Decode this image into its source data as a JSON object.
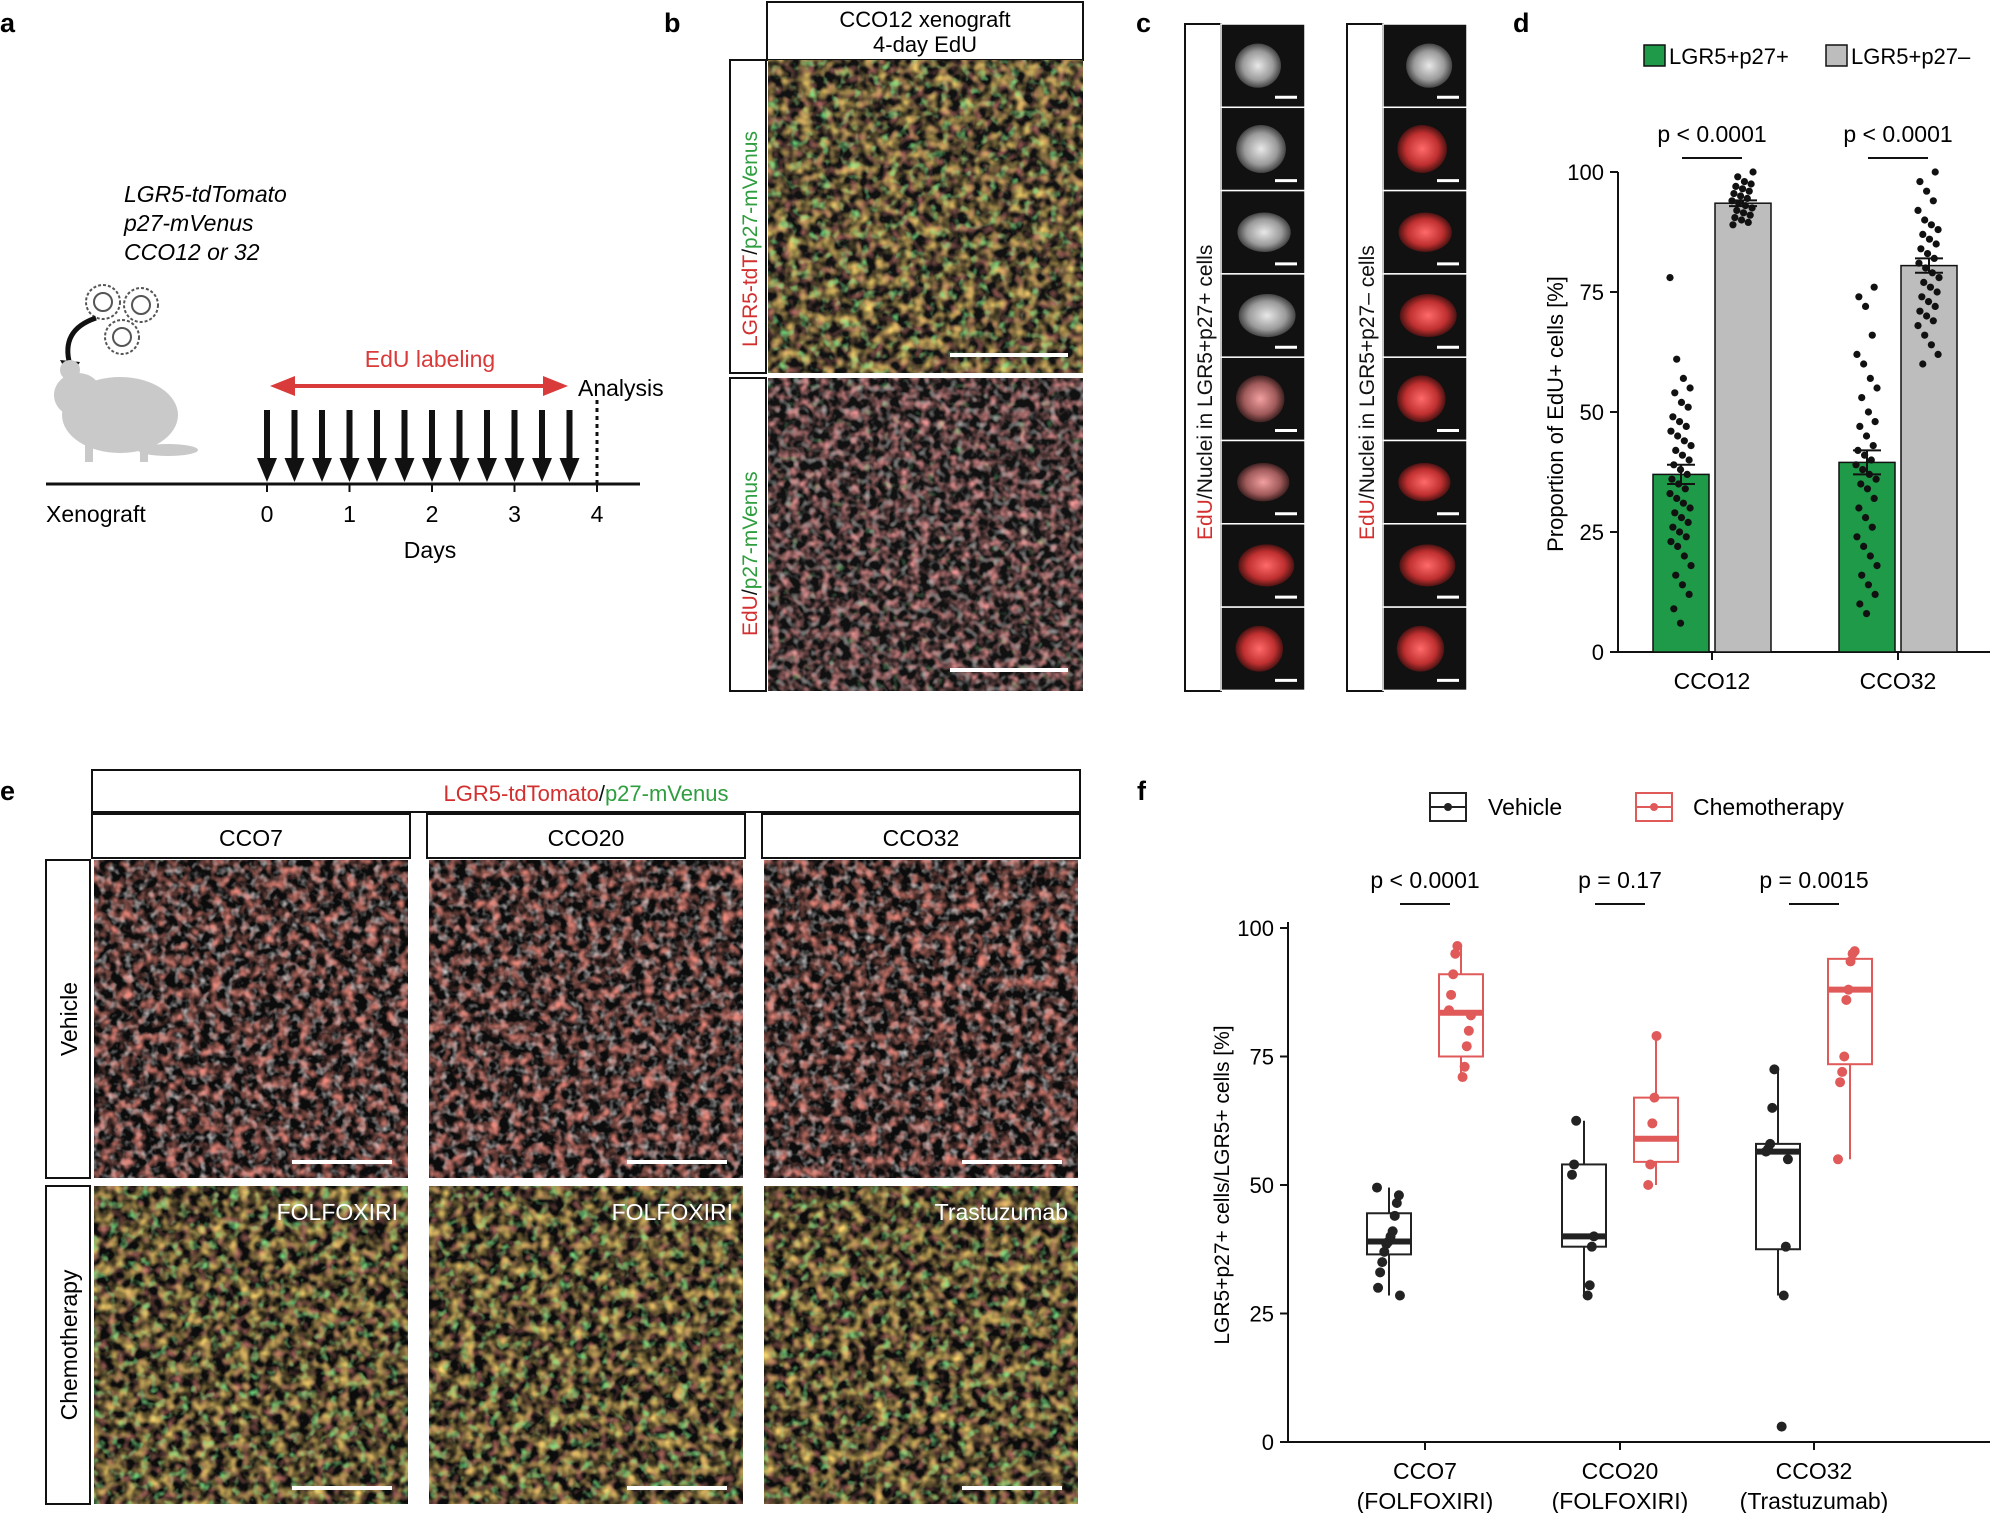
{
  "panels": {
    "a": {
      "letter": "a",
      "genotype": [
        "LGR5-tdTomato",
        "p27-mVenus",
        "CCO12 or 32"
      ],
      "edu_label": "EdU labeling",
      "analysis_label": "Analysis",
      "xenograft_label": "Xenograft",
      "days_label": "Days",
      "day_ticks": [
        "0",
        "1",
        "2",
        "3",
        "4"
      ],
      "arrow_count": 12
    },
    "b": {
      "letter": "b",
      "header_line1": "CCO12 xenograft",
      "header_line2": "4-day EdU",
      "row1_label": {
        "red": "LGR5-tdT",
        "sep": "/",
        "green": "p27-mVenus"
      },
      "row2_label": {
        "red": "EdU",
        "sep": "/",
        "green": "p27-mVenus"
      }
    },
    "c": {
      "letter": "c",
      "col1_label": {
        "red": "EdU",
        "rest": "/Nuclei in LGR5+p27+ cells"
      },
      "col2_label": {
        "red": "EdU",
        "rest": "/Nuclei in LGR5+p27– cells"
      },
      "tiles_per_column": 8
    },
    "d": {
      "letter": "d"
    },
    "e": {
      "letter": "e",
      "header": {
        "red": "LGR5-tdTomato",
        "sep": "/",
        "green": "p27-mVenus"
      },
      "columns": [
        "CCO7",
        "CCO20",
        "CCO32"
      ],
      "rows": [
        "Vehicle",
        "Chemotherapy"
      ],
      "treatments": [
        "FOLFOXIRI",
        "FOLFOXIRI",
        "Trastuzumab"
      ]
    },
    "f": {
      "letter": "f"
    }
  },
  "colors": {
    "green": "#1f9a48",
    "gray_bar": "#bdbdbd",
    "red_box": "#e05a5a",
    "black": "#222222",
    "label_red": "#d32f2f",
    "label_green": "#2e9e3e"
  },
  "chart_data": [
    {
      "panel": "d",
      "type": "bar",
      "ylabel": "Proportion of EdU+ cells [%]",
      "ylim": [
        0,
        100
      ],
      "yticks": [
        0,
        25,
        50,
        75,
        100
      ],
      "categories": [
        "CCO12",
        "CCO32"
      ],
      "legend": [
        "LGR5+p27+",
        "LGR5+p27–"
      ],
      "legend_placement": "top",
      "series": [
        {
          "name": "LGR5+p27+",
          "values": [
            37,
            39.5
          ],
          "sem": [
            2,
            2.5
          ],
          "points": [
            [
              78,
              61,
              57,
              55,
              54,
              52,
              51,
              49,
              48,
              47,
              46,
              45,
              44,
              43,
              42,
              41,
              40,
              39,
              38,
              37,
              36,
              35,
              34,
              33,
              32,
              31,
              30,
              29,
              28,
              27,
              26,
              25,
              24,
              23,
              22,
              20,
              18,
              16,
              14,
              12,
              9,
              6
            ],
            [
              76,
              74,
              72,
              66,
              62,
              60,
              57,
              55,
              53,
              50,
              48,
              47,
              45,
              43,
              42,
              41,
              40,
              39,
              38,
              37,
              36,
              35,
              34,
              32,
              30,
              28,
              26,
              24,
              22,
              20,
              18,
              16,
              14,
              12,
              10,
              8
            ]
          ]
        },
        {
          "name": "LGR5+p27–",
          "values": [
            93.5,
            80.5
          ],
          "sem": [
            0.6,
            1.5
          ],
          "points": [
            [
              100,
              99,
              98,
              97.5,
              97,
              96.5,
              96,
              95.5,
              95,
              94.5,
              94,
              93.5,
              93,
              92.5,
              92,
              91.5,
              91,
              90.5,
              90,
              89.5,
              89
            ],
            [
              100,
              98,
              96,
              94,
              92,
              90,
              89,
              88,
              87,
              86,
              85,
              84,
              83,
              82,
              81,
              80,
              79,
              78,
              77,
              76,
              75,
              74,
              73,
              72,
              71,
              70,
              69,
              68,
              66,
              64,
              62,
              60
            ]
          ]
        }
      ],
      "annotations": [
        "p < 0.0001",
        "p < 0.0001"
      ]
    },
    {
      "panel": "f",
      "type": "box",
      "ylabel": "LGR5+p27+ cells/LGR5+ cells [%]",
      "ylim": [
        0,
        100
      ],
      "yticks": [
        0,
        25,
        50,
        75,
        100
      ],
      "categories": [
        "CCO7",
        "CCO20",
        "CCO32"
      ],
      "category_sublabels": [
        "(FOLFOXIRI)",
        "(FOLFOXIRI)",
        "(Trastuzumab)"
      ],
      "legend": [
        "Vehicle",
        "Chemotherapy"
      ],
      "legend_placement": "top",
      "annotations": [
        "p < 0.0001",
        "p = 0.17",
        "p = 0.0015"
      ],
      "series": [
        {
          "name": "Vehicle",
          "boxes": [
            {
              "min": 28.5,
              "q1": 36.5,
              "median": 39,
              "q3": 44.5,
              "max": 49.5
            },
            {
              "min": 28.5,
              "q1": 38,
              "median": 40,
              "q3": 54,
              "max": 62.5
            },
            {
              "min": 28.5,
              "q1": 37.5,
              "median": 56.5,
              "q3": 58,
              "max": 72.5
            }
          ],
          "points": [
            [
              49.5,
              48,
              46.5,
              44,
              41,
              40,
              39,
              38.5,
              37,
              35,
              33,
              30,
              28.5
            ],
            [
              62.5,
              54,
              52,
              40,
              38,
              30.5,
              28.5
            ],
            [
              72.5,
              65,
              58,
              57,
              56.5,
              55,
              38,
              28.5,
              3
            ]
          ]
        },
        {
          "name": "Chemotherapy",
          "boxes": [
            {
              "min": 71,
              "q1": 75,
              "median": 83.5,
              "q3": 91,
              "max": 96.5
            },
            {
              "min": 50,
              "q1": 54.5,
              "median": 59,
              "q3": 67,
              "max": 79
            },
            {
              "min": 55,
              "q1": 73.5,
              "median": 88,
              "q3": 94,
              "max": 95.5
            }
          ],
          "points": [
            [
              96.5,
              95,
              91,
              87,
              84,
              83,
              80,
              77,
              73,
              71
            ],
            [
              79,
              67,
              62,
              54,
              50
            ],
            [
              95.5,
              95,
              93.5,
              88,
              86,
              75,
              72,
              70,
              55
            ]
          ]
        }
      ]
    }
  ]
}
